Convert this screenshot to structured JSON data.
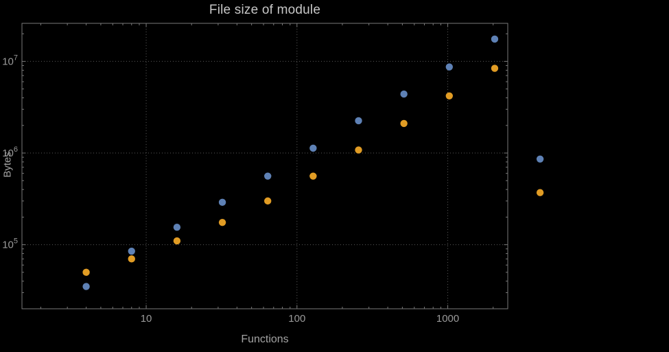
{
  "chart_data": {
    "type": "scatter",
    "title": "File size of module",
    "xlabel": "Functions",
    "ylabel": "Bytes",
    "x_scale": "log",
    "y_scale": "log",
    "xlim": [
      1.5,
      2500
    ],
    "ylim": [
      20000,
      26000000
    ],
    "grid": "dotted lines at decade ticks only",
    "legend_position": "none",
    "x": [
      4,
      8,
      16,
      32,
      64,
      128,
      256,
      512,
      1024,
      2048,
      4096
    ],
    "series": [
      {
        "name": "blue",
        "color": "#5e81b5",
        "values": [
          35000,
          85000,
          155000,
          290000,
          560000,
          1130000,
          2250000,
          4400000,
          8700000,
          17500000,
          860000
        ]
      },
      {
        "name": "orange",
        "color": "#e19c24",
        "values": [
          50000,
          70000,
          110000,
          175000,
          300000,
          560000,
          1080000,
          2100000,
          4200000,
          8400000,
          370000
        ]
      }
    ],
    "x_ticks": [
      {
        "value": 10,
        "label": "10"
      },
      {
        "value": 100,
        "label": "100"
      },
      {
        "value": 1000,
        "label": "1000"
      }
    ],
    "y_ticks": [
      {
        "value": 100000,
        "mantissa": "10",
        "exponent": "5"
      },
      {
        "value": 1000000,
        "mantissa": "10",
        "exponent": "6"
      },
      {
        "value": 10000000,
        "mantissa": "10",
        "exponent": "7"
      }
    ],
    "colors": {
      "background": "#000000",
      "frame": "#7a7a7a",
      "grid": "#5c5c5c",
      "title": "#c7c7c7",
      "axis_labels": "#a3a3a3",
      "tick_labels": "#9a9a9a"
    }
  }
}
